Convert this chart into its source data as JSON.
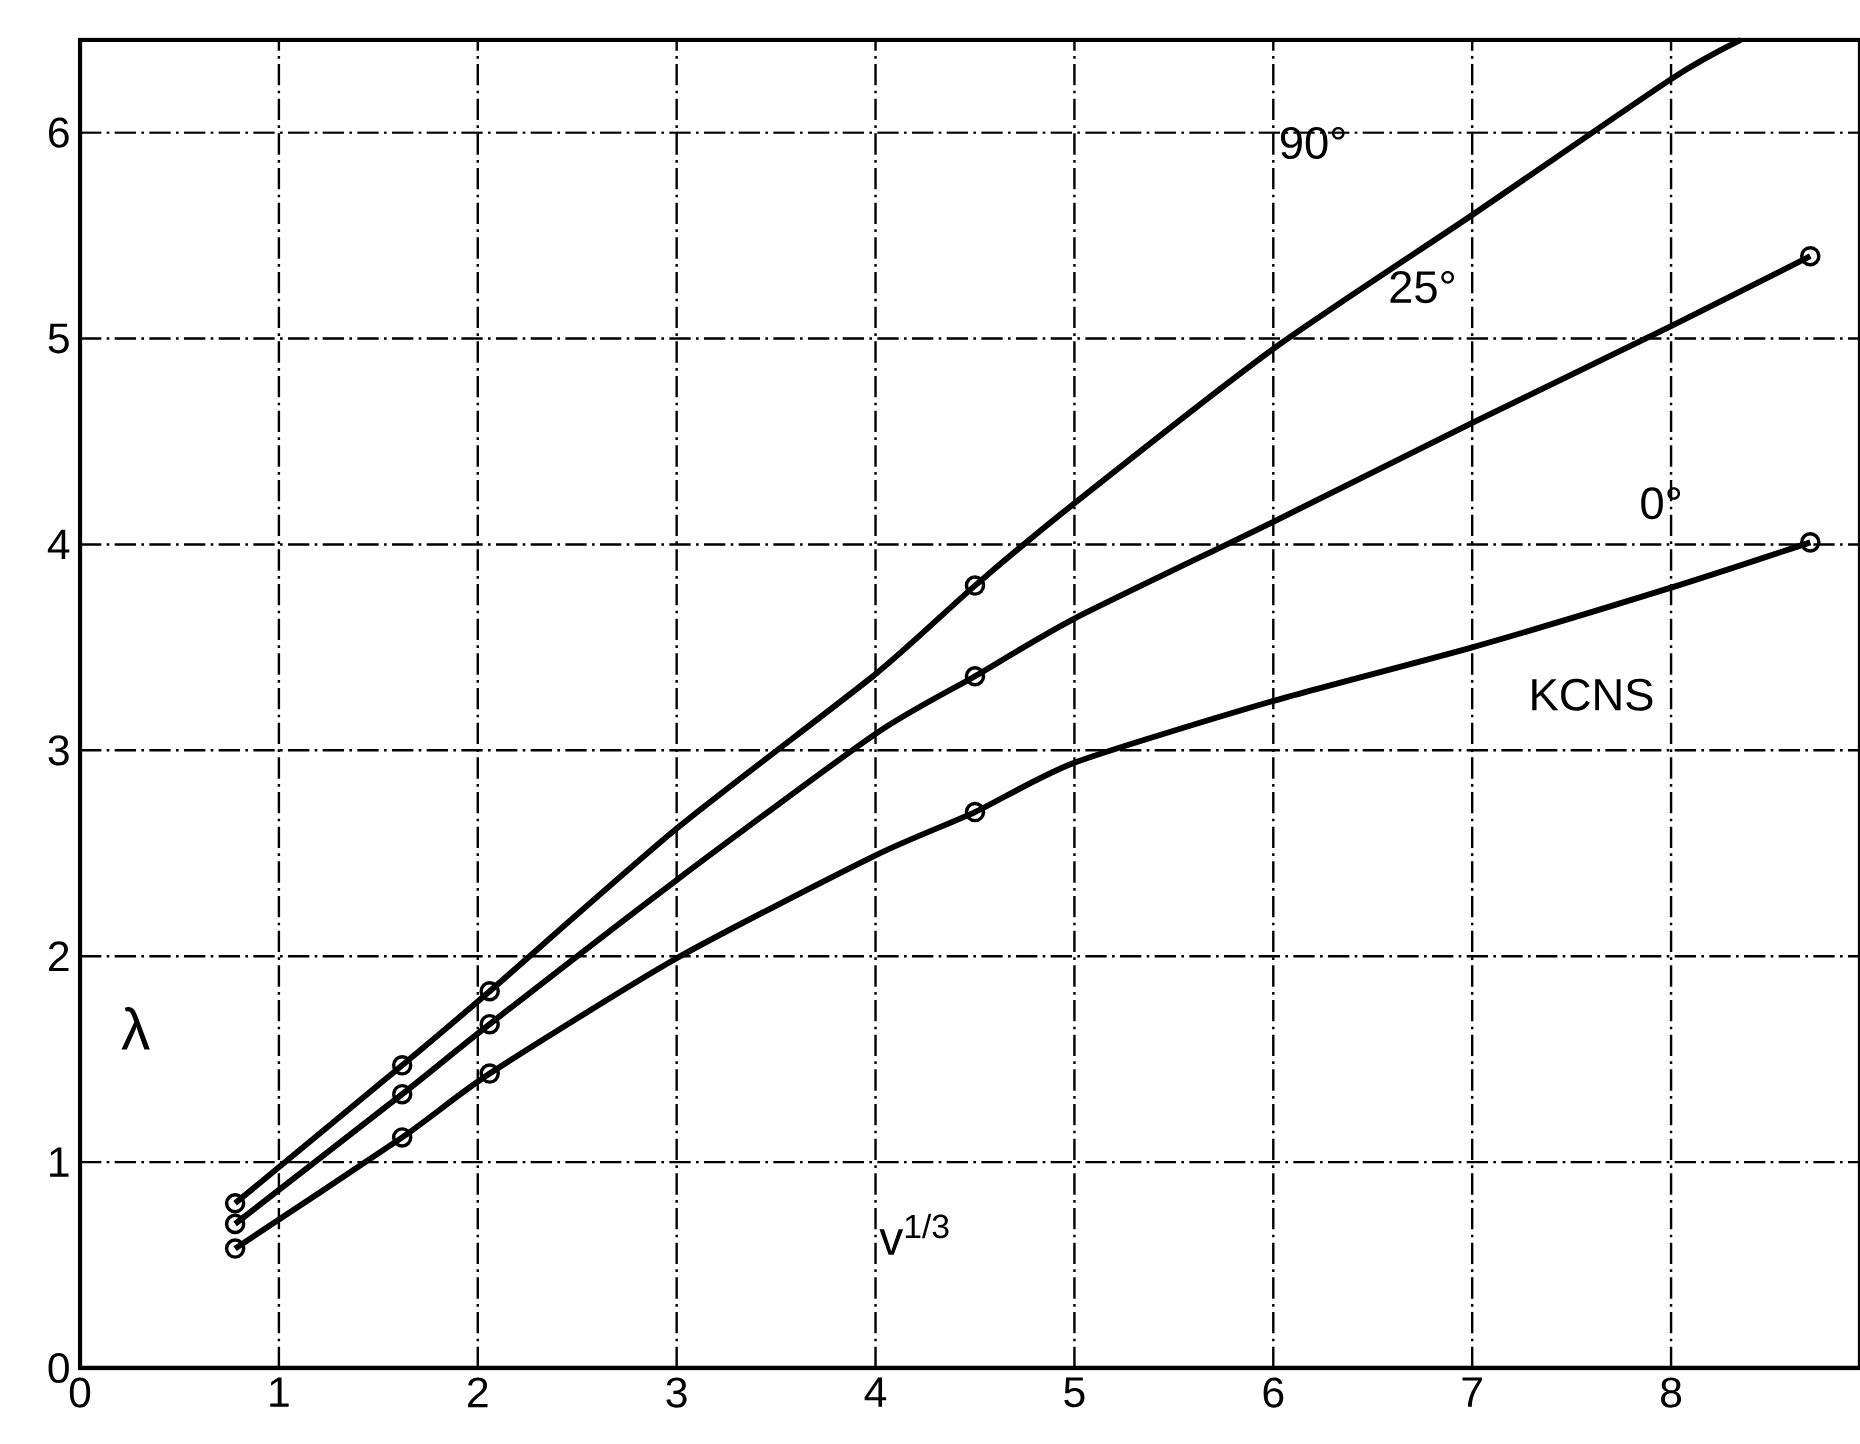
{
  "chart_data": {
    "type": "line",
    "xlabel": "v$^{1/3}$",
    "ylabel": "λ",
    "xlim": [
      0,
      8.95
    ],
    "ylim": [
      0,
      6.45
    ],
    "xticks": [
      0,
      1,
      2,
      3,
      4,
      5,
      6,
      7,
      8
    ],
    "yticks": [
      0,
      1,
      2,
      3,
      4,
      5,
      6
    ],
    "grid": true,
    "series": [
      {
        "color": "#000000",
        "marker": "none",
        "x": [
          0.78,
          1.62,
          2.06,
          3,
          4,
          4.5,
          5,
          6,
          7,
          8,
          8.35
        ],
        "values": [
          0.8,
          1.47,
          1.83,
          2.62,
          3.37,
          3.8,
          4.2,
          4.95,
          5.6,
          6.26,
          6.45
        ]
      },
      {
        "color": "#000000",
        "marker": "none",
        "x": [
          0.78,
          1.62,
          2.06,
          3,
          4,
          4.5,
          5,
          6,
          7,
          8,
          8.7
        ],
        "values": [
          0.7,
          1.33,
          1.67,
          2.37,
          3.08,
          3.36,
          3.64,
          4.11,
          4.59,
          5.06,
          5.4
        ]
      },
      {
        "color": "#000000",
        "marker": "none",
        "x": [
          0.78,
          1.62,
          2.06,
          3,
          4,
          4.5,
          5,
          6,
          7,
          8,
          8.7
        ],
        "values": [
          0.58,
          1.12,
          1.43,
          1.99,
          2.49,
          2.7,
          2.94,
          3.24,
          3.5,
          3.79,
          4.01
        ]
      },
      {
        "type": "scatter",
        "color": "#000000",
        "marker": "circle",
        "x": [
          0.78,
          1.62,
          2.06,
          4.5
        ],
        "values": [
          0.8,
          1.47,
          1.83,
          3.8
        ]
      },
      {
        "type": "scatter",
        "color": "#000000",
        "marker": "circle",
        "x": [
          0.78,
          1.62,
          2.06,
          4.5,
          8.7
        ],
        "values": [
          0.7,
          1.33,
          1.67,
          3.36,
          5.4
        ]
      },
      {
        "type": "scatter",
        "color": "#000000",
        "marker": "circle",
        "x": [
          0.78,
          1.62,
          2.06,
          4.5,
          8.7
        ],
        "values": [
          0.58,
          1.12,
          1.43,
          2.7,
          4.01
        ]
      }
    ],
    "annotations": [
      "90°",
      "25°",
      "0°",
      "KCNS"
    ]
  }
}
